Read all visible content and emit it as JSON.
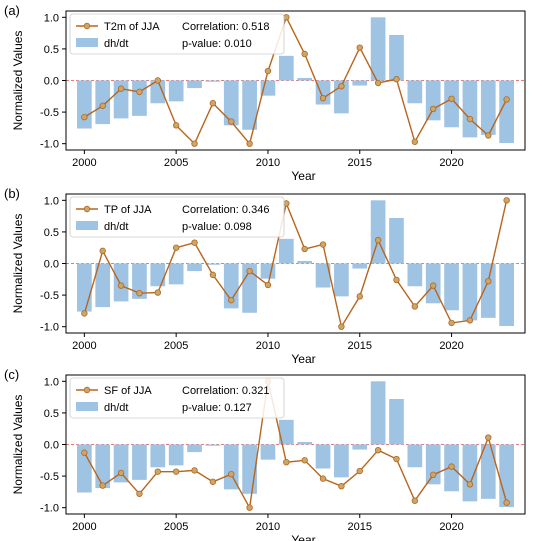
{
  "colors": {
    "bar": "#9fc3e2",
    "line": "#b8651d",
    "marker": "#c6a96a",
    "zero_line": "#e07b7b"
  },
  "shared": {
    "years": [
      2000,
      2001,
      2002,
      2003,
      2004,
      2005,
      2006,
      2007,
      2008,
      2009,
      2010,
      2011,
      2012,
      2013,
      2014,
      2015,
      2016,
      2017,
      2018,
      2019,
      2020,
      2021,
      2022,
      2023
    ],
    "xticks": [
      2000,
      2005,
      2010,
      2015,
      2020
    ],
    "yticks": [
      1.0,
      0.5,
      0.0,
      -0.5,
      -1.0
    ],
    "ylim": [
      -1.1,
      1.1
    ],
    "xlabel": "Year",
    "ylabel": "Normalized Values",
    "bar_legend_label": "dh/dt"
  },
  "chart_data": [
    {
      "type": "bar",
      "panel_label": "(a)",
      "line_label": "T2m of JJA",
      "correlation_text": "Correlation: 0.518",
      "pvalue_text": "p-value: 0.010",
      "bars": [
        -0.76,
        -0.69,
        -0.6,
        -0.56,
        -0.36,
        -0.33,
        -0.12,
        -0.02,
        -0.71,
        -0.78,
        -0.24,
        0.39,
        0.04,
        -0.38,
        -0.52,
        -0.08,
        1.0,
        0.72,
        -0.36,
        -0.63,
        -0.74,
        -0.9,
        -0.86,
        -0.99
      ],
      "line": [
        -0.58,
        -0.4,
        -0.13,
        -0.18,
        0.0,
        -0.71,
        -1.0,
        -0.36,
        -0.65,
        -1.0,
        0.15,
        1.0,
        0.42,
        -0.28,
        -0.09,
        0.52,
        -0.04,
        0.02,
        -0.97,
        -0.45,
        -0.29,
        -0.61,
        -0.87,
        -0.3
      ]
    },
    {
      "type": "bar",
      "panel_label": "(b)",
      "line_label": "TP of JJA",
      "correlation_text": "Correlation: 0.346",
      "pvalue_text": "p-value: 0.098",
      "bars": [
        -0.76,
        -0.69,
        -0.6,
        -0.56,
        -0.36,
        -0.33,
        -0.12,
        -0.02,
        -0.71,
        -0.78,
        -0.24,
        0.39,
        0.04,
        -0.38,
        -0.52,
        -0.08,
        1.0,
        0.72,
        -0.36,
        -0.63,
        -0.74,
        -0.9,
        -0.86,
        -0.99
      ],
      "line": [
        -0.79,
        0.2,
        -0.35,
        -0.47,
        -0.46,
        0.25,
        0.33,
        -0.18,
        -0.58,
        -0.12,
        -0.34,
        0.95,
        0.23,
        0.3,
        -1.0,
        -0.52,
        0.37,
        -0.26,
        -0.68,
        -0.35,
        -0.94,
        -0.9,
        -0.28,
        1.0
      ]
    },
    {
      "type": "bar",
      "panel_label": "(c)",
      "line_label": "SF of JJA",
      "correlation_text": "Correlation: 0.321",
      "pvalue_text": "p-value: 0.127",
      "bars": [
        -0.76,
        -0.69,
        -0.6,
        -0.56,
        -0.36,
        -0.33,
        -0.12,
        -0.02,
        -0.71,
        -0.78,
        -0.24,
        0.39,
        0.04,
        -0.38,
        -0.52,
        -0.08,
        1.0,
        0.72,
        -0.36,
        -0.63,
        -0.74,
        -0.9,
        -0.86,
        -0.99
      ],
      "line": [
        -0.13,
        -0.65,
        -0.45,
        -0.78,
        -0.43,
        -0.43,
        -0.41,
        -0.59,
        -0.47,
        -1.0,
        1.0,
        -0.28,
        -0.25,
        -0.54,
        -0.66,
        -0.42,
        -0.09,
        -0.23,
        -0.89,
        -0.48,
        -0.35,
        -0.63,
        0.11,
        -0.92
      ]
    }
  ]
}
